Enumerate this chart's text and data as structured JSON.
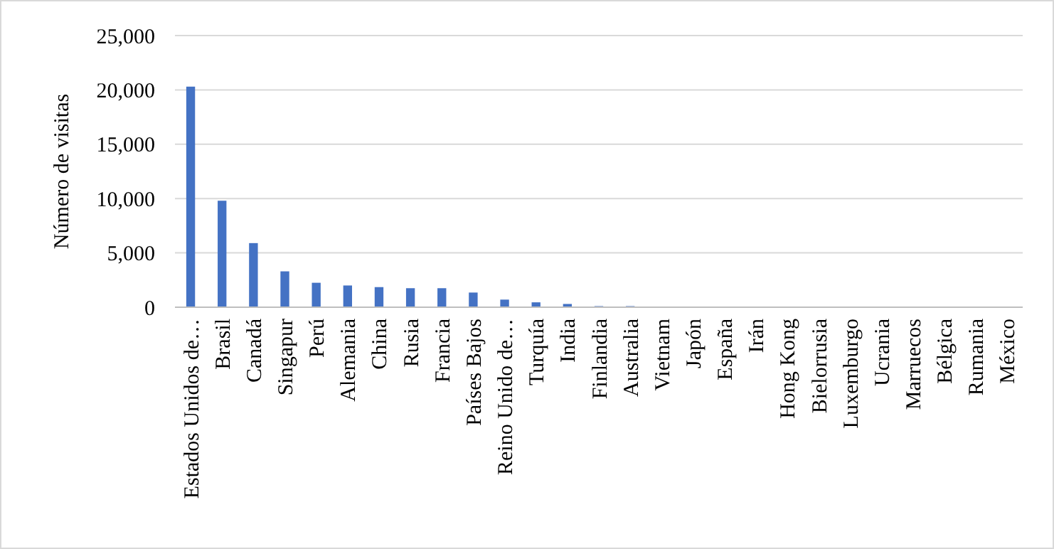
{
  "chart_data": {
    "type": "bar",
    "ylabel": "Número de visitas",
    "categories": [
      "Estados Unidos de…",
      "Brasil",
      "Canadá",
      "Singapur",
      "Perú",
      "Alemania",
      "China",
      "Rusia",
      "Francia",
      "Países Bajos",
      "Reino Unido de…",
      "Turquía",
      "India",
      "Finlandia",
      "Australia",
      "Vietnam",
      "Japón",
      "España",
      "Irán",
      "Hong Kong",
      "Bielorrusia",
      "Luxemburgo",
      "Ucrania",
      "Marruecos",
      "Bélgica",
      "Rumania",
      "México"
    ],
    "values": [
      20300,
      9800,
      5900,
      3300,
      2250,
      2000,
      1850,
      1750,
      1750,
      1350,
      700,
      450,
      300,
      100,
      100,
      0,
      0,
      0,
      0,
      0,
      0,
      0,
      0,
      0,
      0,
      0,
      0
    ],
    "color": "#4472c4",
    "ylim": [
      0,
      25000
    ],
    "yticks": [
      {
        "value": 0,
        "label": "0"
      },
      {
        "value": 5000,
        "label": "5,000"
      },
      {
        "value": 10000,
        "label": "10,000"
      },
      {
        "value": 15000,
        "label": "15,000"
      },
      {
        "value": 20000,
        "label": "20,000"
      },
      {
        "value": 25000,
        "label": "25,000"
      }
    ],
    "grid": "y"
  }
}
